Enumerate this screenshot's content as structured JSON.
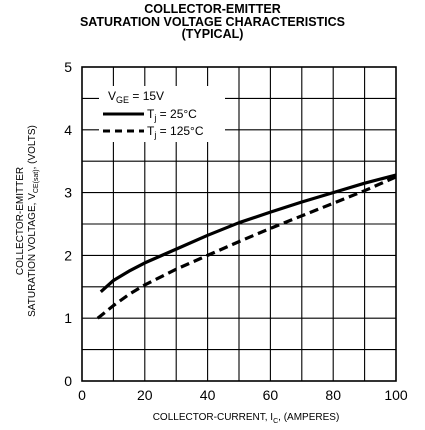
{
  "chart_data": {
    "type": "line",
    "title_lines": [
      "COLLECTOR-EMITTER",
      "SATURATION VOLTAGE CHARACTERISTICS",
      "(TYPICAL)"
    ],
    "xlabel": {
      "main": "COLLECTOR-CURRENT, I",
      "sub": "C",
      "tail": ", (AMPERES)"
    },
    "ylabel": {
      "line1": "COLLECTOR-EMITTER",
      "line2_main": "SATURATION VOLTAGE, V",
      "line2_sub": "CE(sat)",
      "line2_tail": ", (VOLTS)"
    },
    "xlim": [
      0,
      100
    ],
    "ylim": [
      0,
      5
    ],
    "x_ticks": [
      0,
      20,
      40,
      60,
      80,
      100
    ],
    "y_ticks": [
      0,
      1,
      2,
      3,
      4,
      5
    ],
    "x_tick_labels": [
      "0",
      "20",
      "40",
      "60",
      "80",
      "100"
    ],
    "y_tick_labels": [
      "0",
      "1",
      "2",
      "3",
      "4",
      "5"
    ],
    "x_grid_step": 10,
    "y_grid_step": 0.5,
    "grid": true,
    "legend": {
      "placement": "top-left",
      "header": {
        "main": "V",
        "sub": "GE",
        "tail": " = 15V"
      }
    },
    "series": [
      {
        "label_main": "T",
        "label_sub": "j",
        "label_tail": " = 25°C",
        "style": "solid",
        "color": "#000000",
        "x": [
          6,
          10,
          15,
          20,
          25,
          30,
          40,
          50,
          60,
          70,
          80,
          90,
          100
        ],
        "y": [
          1.42,
          1.6,
          1.75,
          1.88,
          1.99,
          2.1,
          2.32,
          2.52,
          2.69,
          2.85,
          3.0,
          3.15,
          3.28
        ]
      },
      {
        "label_main": "T",
        "label_sub": "j",
        "label_tail": " = 125°C",
        "style": "dashed",
        "color": "#000000",
        "x": [
          5,
          10,
          15,
          20,
          30,
          40,
          50,
          60,
          70,
          80,
          90,
          100
        ],
        "y": [
          1.0,
          1.2,
          1.38,
          1.53,
          1.78,
          2.0,
          2.22,
          2.43,
          2.63,
          2.83,
          3.03,
          3.25
        ]
      }
    ]
  }
}
